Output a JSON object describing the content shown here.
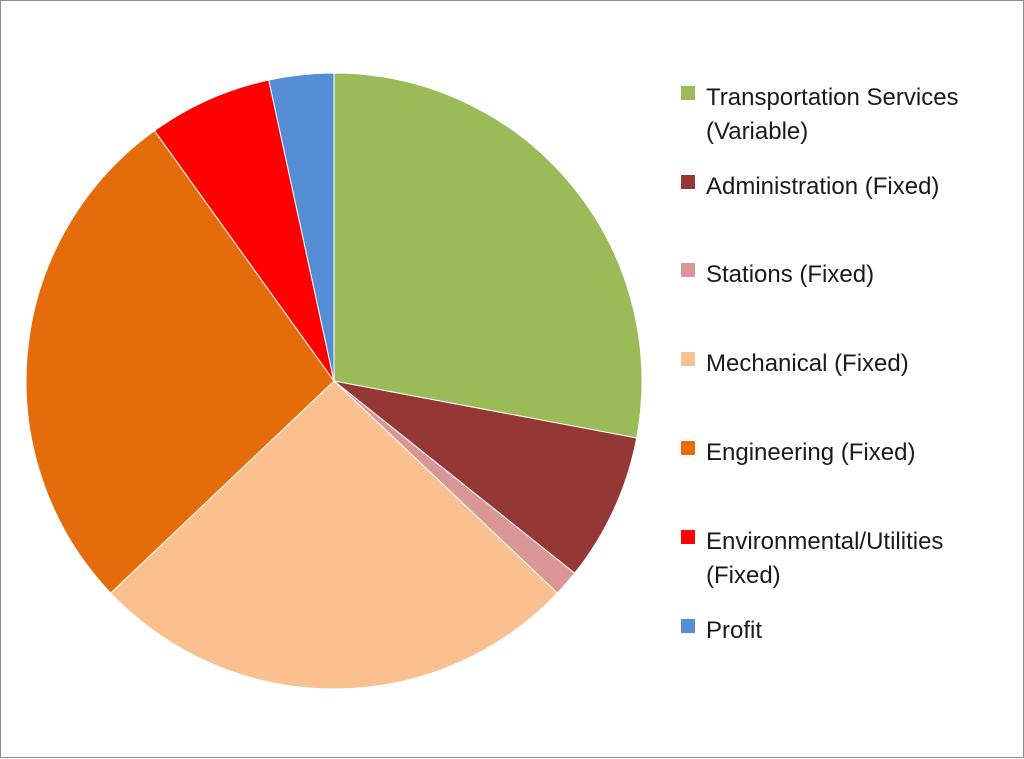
{
  "chart_data": {
    "type": "pie",
    "title": "",
    "legend_position": "right",
    "start_angle": "12 o'clock, clockwise",
    "slices": [
      {
        "label": "Transportation Services (Variable)",
        "value": 28.8,
        "color": "#9BBB59"
      },
      {
        "label": "Administration (Fixed)",
        "value": 8.0,
        "color": "#953735"
      },
      {
        "label": "Stations (Fixed)",
        "value": 1.4,
        "color": "#D99694"
      },
      {
        "label": "Mechanical (Fixed)",
        "value": 26.6,
        "color": "#FAC090"
      },
      {
        "label": "Engineering (Fixed)",
        "value": 28.0,
        "color": "#E46C0A"
      },
      {
        "label": "Environmental/Utilities (Fixed)",
        "value": 6.7,
        "color": "#FF0000"
      },
      {
        "label": "Profit",
        "value": 3.5,
        "color": "#558ED5"
      }
    ]
  },
  "legend": {
    "items": [
      {
        "label": "Transportation Services (Variable)",
        "color": "#9BBB59"
      },
      {
        "label": "Administration (Fixed)",
        "color": "#953735"
      },
      {
        "label": "Stations (Fixed)",
        "color": "#D99694"
      },
      {
        "label": "Mechanical (Fixed)",
        "color": "#FAC090"
      },
      {
        "label": "Engineering (Fixed)",
        "color": "#E46C0A"
      },
      {
        "label": "Environmental/Utilities (Fixed)",
        "color": "#FF0000"
      },
      {
        "label": "Profit",
        "color": "#558ED5"
      }
    ]
  }
}
